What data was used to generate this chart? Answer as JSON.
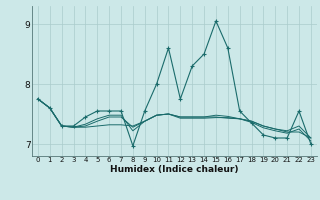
{
  "title": "",
  "xlabel": "Humidex (Indice chaleur)",
  "ylabel": "",
  "background_color": "#cce8e8",
  "grid_color": "#aacccc",
  "line_color": "#1a6b6b",
  "xlim": [
    -0.5,
    23.5
  ],
  "ylim": [
    6.8,
    9.3
  ],
  "yticks": [
    7,
    8,
    9
  ],
  "ytick_labels": [
    "7",
    "8",
    "9"
  ],
  "xticks": [
    0,
    1,
    2,
    3,
    4,
    5,
    6,
    7,
    8,
    9,
    10,
    11,
    12,
    13,
    14,
    15,
    16,
    17,
    18,
    19,
    20,
    21,
    22,
    23
  ],
  "series": [
    [
      7.75,
      7.6,
      7.3,
      7.3,
      7.45,
      7.55,
      7.55,
      7.55,
      6.97,
      7.55,
      8.0,
      8.6,
      7.75,
      8.3,
      8.5,
      9.05,
      8.6,
      7.55,
      7.35,
      7.15,
      7.1,
      7.1,
      7.55,
      7.0
    ],
    [
      7.75,
      7.6,
      7.3,
      7.28,
      7.28,
      7.3,
      7.32,
      7.32,
      7.3,
      7.38,
      7.48,
      7.5,
      7.45,
      7.45,
      7.45,
      7.45,
      7.43,
      7.42,
      7.38,
      7.3,
      7.25,
      7.2,
      7.2,
      7.1
    ],
    [
      7.75,
      7.6,
      7.3,
      7.28,
      7.3,
      7.38,
      7.45,
      7.45,
      7.28,
      7.38,
      7.48,
      7.5,
      7.45,
      7.45,
      7.45,
      7.48,
      7.46,
      7.42,
      7.38,
      7.3,
      7.25,
      7.22,
      7.3,
      7.1
    ],
    [
      7.75,
      7.6,
      7.3,
      7.28,
      7.33,
      7.42,
      7.48,
      7.48,
      7.22,
      7.38,
      7.48,
      7.5,
      7.43,
      7.43,
      7.43,
      7.44,
      7.44,
      7.42,
      7.36,
      7.27,
      7.22,
      7.18,
      7.25,
      7.05
    ]
  ],
  "show_markers": [
    true,
    false,
    false,
    false
  ],
  "marker": "+",
  "marker_size": 3.5,
  "linewidth_marker": 0.8,
  "linewidth_plain": 0.7,
  "xlabel_fontsize": 6.5,
  "ytick_fontsize": 6.5,
  "xtick_fontsize": 5.0
}
